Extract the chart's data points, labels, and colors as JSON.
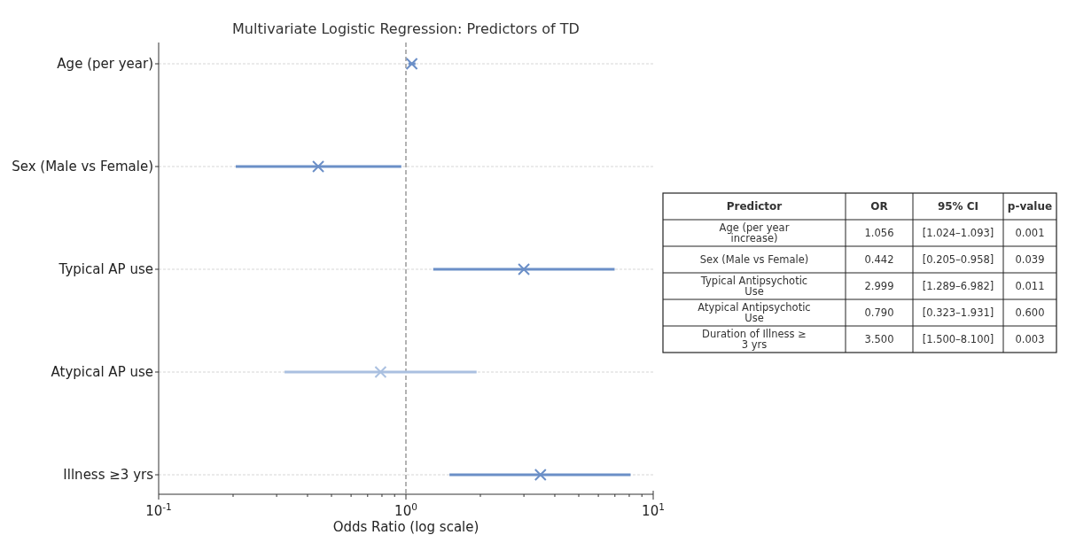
{
  "chart_data": [
    {
      "type": "scatter",
      "title": "Multivariate Logistic Regression: Predictors of TD",
      "xlabel": "Odds Ratio (log scale)",
      "orientation": "horizontal",
      "log": "x",
      "grid": "y",
      "marker": "cross",
      "categories": [
        "Age (per year)",
        "Sex (Male vs Female)",
        "Typical AP use",
        "Atypical AP use",
        "Illness ≥3 yrs"
      ],
      "values": [
        1.056,
        0.442,
        2.999,
        0.79,
        3.5
      ],
      "errors": [
        [
          1.024,
          1.093
        ],
        [
          0.205,
          0.958
        ],
        [
          1.289,
          6.982
        ],
        [
          0.323,
          1.931
        ],
        [
          1.5,
          8.1
        ]
      ],
      "colors": [
        "#6b8fc7",
        "#6b8fc7",
        "#6b8fc7",
        "#aac0e0",
        "#6b8fc7"
      ],
      "xlim": [
        0.1,
        10
      ],
      "xticks": [
        {
          "value": 0.1,
          "label": "10$^{-1}$"
        },
        {
          "value": 0.2,
          "label": null
        },
        {
          "value": 0.3,
          "label": null
        },
        {
          "value": 0.4,
          "label": null
        },
        {
          "value": 0.5,
          "label": null
        },
        {
          "value": 0.6,
          "label": null
        },
        {
          "value": 0.7,
          "label": null
        },
        {
          "value": 0.8,
          "label": null
        },
        {
          "value": 0.9,
          "label": null
        },
        {
          "value": 1,
          "label": "10$^{0}$"
        },
        {
          "value": 2,
          "label": null
        },
        {
          "value": 3,
          "label": null
        },
        {
          "value": 4,
          "label": null
        },
        {
          "value": 5,
          "label": null
        },
        {
          "value": 6,
          "label": null
        },
        {
          "value": 7,
          "label": null
        },
        {
          "value": 8,
          "label": null
        },
        {
          "value": 9,
          "label": null
        },
        {
          "value": 10,
          "label": "10$^{1}$"
        }
      ],
      "ref_lines": [
        {
          "axis": "x",
          "value": 1,
          "color": "#808080",
          "line_style": "dashed"
        }
      ]
    },
    {
      "type": "other",
      "categories": [
        "Predictor",
        "OR",
        "95% CI",
        "p-value"
      ],
      "annotations": [
        "Age (per year\nincrease)",
        "1.056",
        "[1.024–1.093]",
        "0.001",
        "Sex (Male vs Female)",
        "0.442",
        "[0.205–0.958]",
        "0.039",
        "Typical Antipsychotic\nUse",
        "2.999",
        "[1.289–6.982]",
        "0.011",
        "Atypical Antipsychotic\nUse",
        "0.790",
        "[0.323–1.931]",
        "0.600",
        "Duration of Illness ≥\n3 yrs",
        "3.500",
        "[1.500–8.100]",
        "0.003"
      ]
    }
  ]
}
